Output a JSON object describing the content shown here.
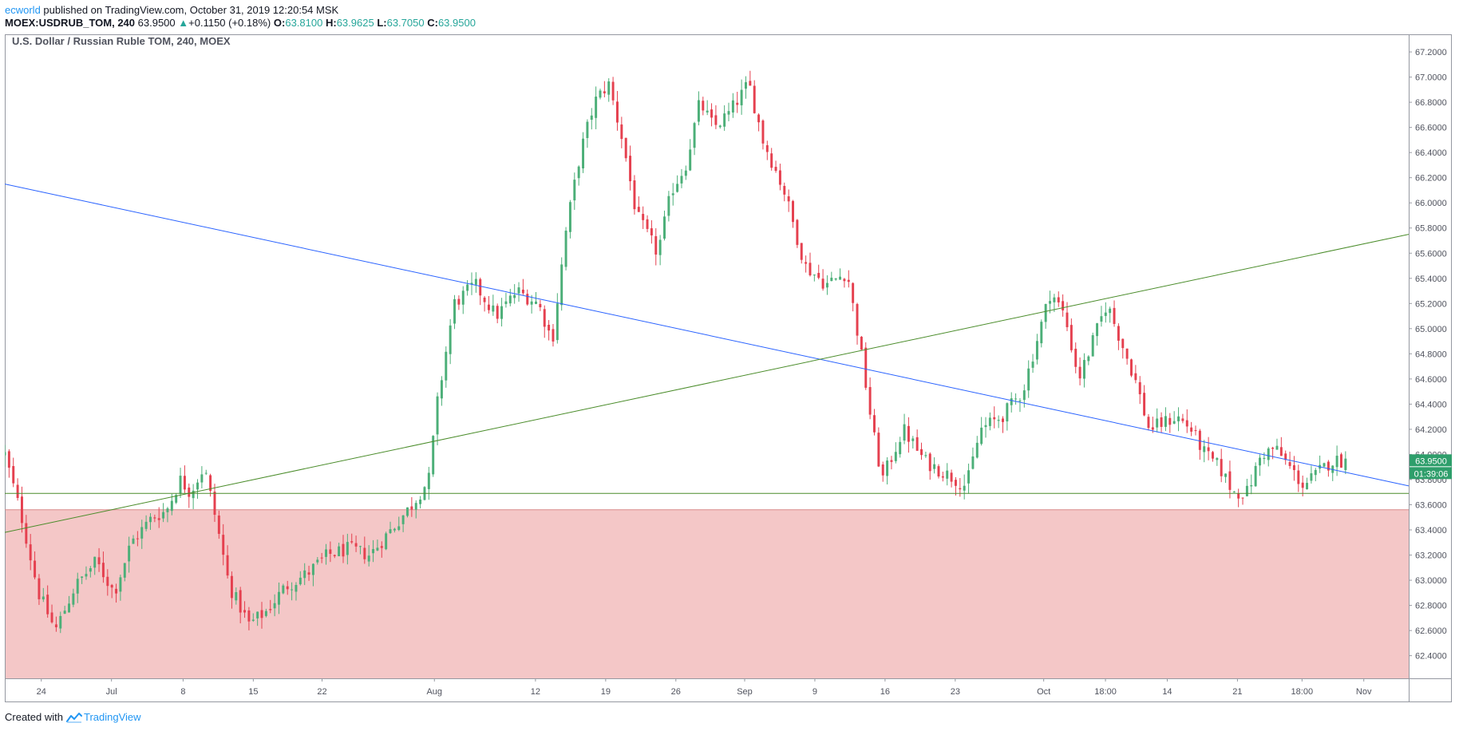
{
  "header": {
    "author": "ecworld",
    "published_text": " published on TradingView.com, October 31, 2019 12:20:54 MSK",
    "symbol": "MOEX:USDRUB_TOM, 240",
    "last": "63.9500",
    "change": "+0.1150 (+0.18%)",
    "open_label": "O:",
    "open": "63.8100",
    "high_label": "H:",
    "high": "63.9625",
    "low_label": "L:",
    "low": "63.7050",
    "close_label": "C:",
    "close": "63.9500"
  },
  "chart_title": "U.S. Dollar / Russian Ruble TOM, 240, MOEX",
  "price_tag": "63.9500",
  "countdown_tag": "01:39:06",
  "footer": {
    "created_with": "Created with",
    "brand": "TradingView"
  },
  "colors": {
    "up": "#4caf78",
    "down": "#e5404f",
    "zone_fill": "#f4c7c7",
    "blue_line": "#2962ff",
    "green_line": "#4a8c2a",
    "tag_bg": "#2e9e6b"
  },
  "chart_data": {
    "type": "candlestick",
    "title": "U.S. Dollar / Russian Ruble TOM, 240, MOEX",
    "ylim": [
      62.22,
      67.34
    ],
    "x_range": [
      0,
      100
    ],
    "y_ticks": [
      "67.2000",
      "67.0000",
      "66.8000",
      "66.6000",
      "66.4000",
      "66.2000",
      "66.0000",
      "65.8000",
      "65.6000",
      "65.4000",
      "65.2000",
      "65.0000",
      "64.8000",
      "64.6000",
      "64.4000",
      "64.2000",
      "64.0000",
      "63.8000",
      "63.6000",
      "63.4000",
      "63.2000",
      "63.0000",
      "62.8000",
      "62.6000",
      "62.4000"
    ],
    "x_ticks": [
      {
        "label": "24",
        "x": 2.6
      },
      {
        "label": "Jul",
        "x": 7.6
      },
      {
        "label": "8",
        "x": 12.7
      },
      {
        "label": "15",
        "x": 17.7
      },
      {
        "label": "22",
        "x": 22.6
      },
      {
        "label": "Aug",
        "x": 30.6
      },
      {
        "label": "12",
        "x": 37.8
      },
      {
        "label": "19",
        "x": 42.8
      },
      {
        "label": "26",
        "x": 47.8
      },
      {
        "label": "Sep",
        "x": 52.7
      },
      {
        "label": "9",
        "x": 57.7
      },
      {
        "label": "16",
        "x": 62.7
      },
      {
        "label": "23",
        "x": 67.7
      },
      {
        "label": "Oct",
        "x": 74.0
      },
      {
        "label": "18:00",
        "x": 78.4
      },
      {
        "label": "14",
        "x": 82.8
      },
      {
        "label": "21",
        "x": 87.8
      },
      {
        "label": "18:00",
        "x": 92.4
      },
      {
        "label": "Nov",
        "x": 96.8
      }
    ],
    "series": [
      {
        "name": "USDRUB_TOM close",
        "anchors": [
          [
            0,
            64.0
          ],
          [
            1.2,
            63.5
          ],
          [
            2.4,
            62.9
          ],
          [
            3.6,
            62.6
          ],
          [
            5,
            62.95
          ],
          [
            6.5,
            63.15
          ],
          [
            7.8,
            62.9
          ],
          [
            9,
            63.3
          ],
          [
            10.5,
            63.5
          ],
          [
            11.5,
            63.55
          ],
          [
            12.5,
            63.8
          ],
          [
            13.2,
            63.7
          ],
          [
            14.2,
            63.9
          ],
          [
            15,
            63.5
          ],
          [
            16,
            62.95
          ],
          [
            17.4,
            62.65
          ],
          [
            18.6,
            62.75
          ],
          [
            20,
            62.95
          ],
          [
            21.5,
            63.05
          ],
          [
            23,
            63.2
          ],
          [
            24.5,
            63.25
          ],
          [
            26,
            63.2
          ],
          [
            27.5,
            63.4
          ],
          [
            29,
            63.6
          ],
          [
            30.2,
            63.8
          ],
          [
            30.8,
            64.4
          ],
          [
            32,
            65.2
          ],
          [
            33.5,
            65.35
          ],
          [
            35,
            65.1
          ],
          [
            36.5,
            65.3
          ],
          [
            38,
            65.2
          ],
          [
            39,
            64.9
          ],
          [
            40,
            65.8
          ],
          [
            41,
            66.4
          ],
          [
            42,
            66.8
          ],
          [
            43,
            66.95
          ],
          [
            44,
            66.5
          ],
          [
            45,
            65.9
          ],
          [
            46.5,
            65.6
          ],
          [
            47.5,
            66.1
          ],
          [
            48.5,
            66.3
          ],
          [
            49.5,
            66.8
          ],
          [
            50.5,
            66.6
          ],
          [
            51.5,
            66.7
          ],
          [
            53,
            66.95
          ],
          [
            54,
            66.5
          ],
          [
            55.5,
            66.1
          ],
          [
            57,
            65.5
          ],
          [
            58.5,
            65.35
          ],
          [
            60,
            65.45
          ],
          [
            61,
            64.8
          ],
          [
            61.8,
            64.2
          ],
          [
            62.5,
            63.8
          ],
          [
            64,
            64.2
          ],
          [
            65.5,
            63.95
          ],
          [
            67,
            63.85
          ],
          [
            68.5,
            63.75
          ],
          [
            69.5,
            64.2
          ],
          [
            71,
            64.3
          ],
          [
            72.5,
            64.5
          ],
          [
            73.5,
            64.9
          ],
          [
            74.5,
            65.3
          ],
          [
            75.5,
            65.1
          ],
          [
            76.5,
            64.6
          ],
          [
            77.5,
            64.9
          ],
          [
            78.5,
            65.2
          ],
          [
            79.5,
            64.9
          ],
          [
            80.5,
            64.6
          ],
          [
            81.5,
            64.2
          ],
          [
            82.5,
            64.25
          ],
          [
            83.5,
            64.3
          ],
          [
            84.5,
            64.2
          ],
          [
            85.5,
            64.0
          ],
          [
            86.5,
            63.9
          ],
          [
            87.5,
            63.7
          ],
          [
            88.5,
            63.7
          ],
          [
            89.5,
            64.0
          ],
          [
            90.5,
            64.05
          ],
          [
            91.5,
            63.9
          ],
          [
            92.5,
            63.75
          ],
          [
            93.5,
            63.85
          ],
          [
            94.5,
            63.95
          ],
          [
            95.5,
            63.95
          ]
        ]
      }
    ],
    "drawings": {
      "blue_trendline": [
        [
          0,
          66.15
        ],
        [
          100,
          63.75
        ]
      ],
      "green_trendline": [
        [
          0,
          63.38
        ],
        [
          100,
          65.75
        ]
      ],
      "support_zone": [
        62.22,
        63.56
      ],
      "horizontal_level": 63.69
    }
  }
}
